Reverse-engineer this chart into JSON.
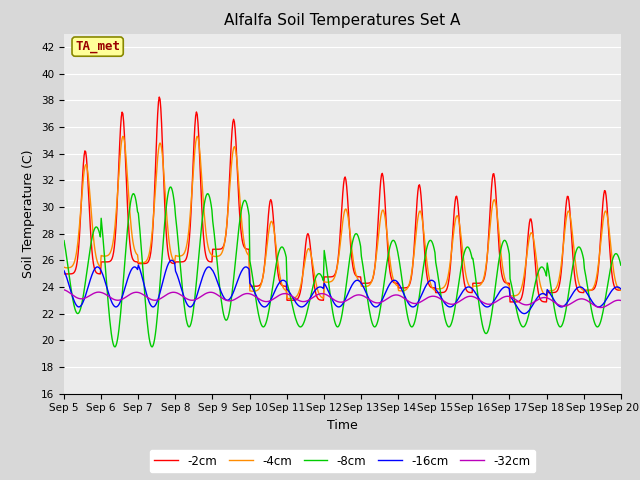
{
  "title": "Alfalfa Soil Temperatures Set A",
  "xlabel": "Time",
  "ylabel": "Soil Temperature (C)",
  "ylim": [
    16,
    43
  ],
  "xlim": [
    0,
    15
  ],
  "xtick_labels": [
    "Sep 5",
    "Sep 6",
    "Sep 7",
    "Sep 8",
    "Sep 9",
    "Sep 10",
    "Sep 11",
    "Sep 12",
    "Sep 13",
    "Sep 14",
    "Sep 15",
    "Sep 16",
    "Sep 17",
    "Sep 18",
    "Sep 19",
    "Sep 20"
  ],
  "legend_labels": [
    "-2cm",
    "-4cm",
    "-8cm",
    "-16cm",
    "-32cm"
  ],
  "colors": {
    "-2cm": "#FF0000",
    "-4cm": "#FF8C00",
    "-8cm": "#00CC00",
    "-16cm": "#0000FF",
    "-32cm": "#BB00BB"
  },
  "annotation_text": "TA_met",
  "annotation_color": "#990000",
  "annotation_bg": "#FFFF99",
  "background_color": "#D8D8D8",
  "plot_bg": "#EBEBEB",
  "title_fontsize": 11,
  "axis_label_fontsize": 9,
  "tick_fontsize": 7.5
}
